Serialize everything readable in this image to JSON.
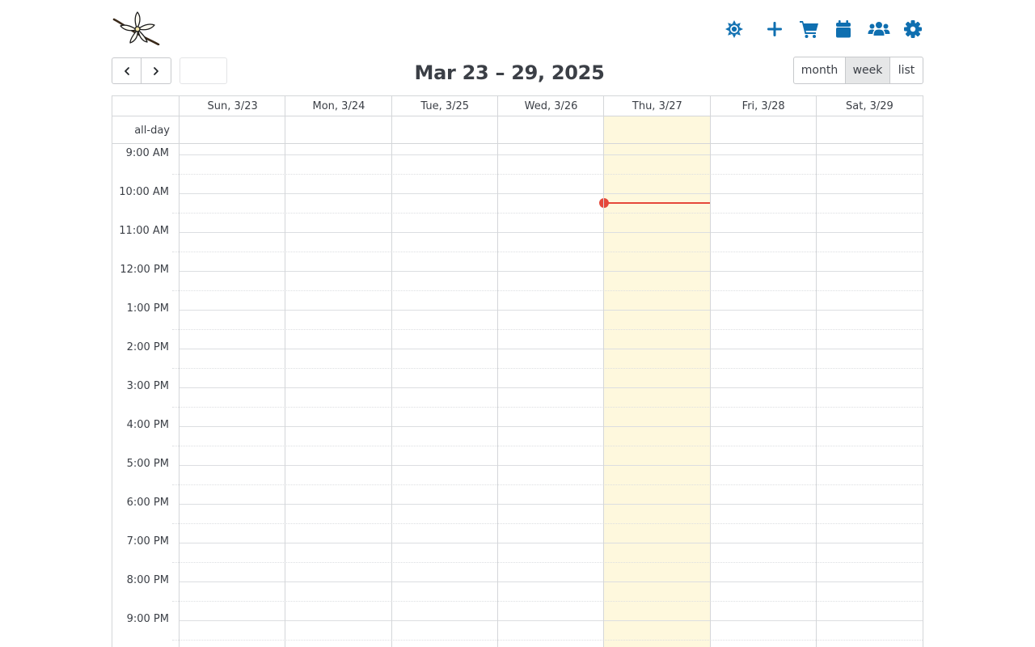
{
  "header": {
    "icons": [
      {
        "name": "light-mode-icon"
      },
      {
        "name": "add-icon"
      },
      {
        "name": "cart-icon"
      },
      {
        "name": "calendar-icon"
      },
      {
        "name": "users-icon"
      },
      {
        "name": "settings-icon"
      }
    ],
    "accent_color": "#0f6fb0"
  },
  "toolbar": {
    "title": "Mar 23 – 29, 2025",
    "today_label": "",
    "views": [
      {
        "label": "month",
        "active": false
      },
      {
        "label": "week",
        "active": true
      },
      {
        "label": "list",
        "active": false
      }
    ]
  },
  "calendar": {
    "day_headers": [
      "Sun, 3/23",
      "Mon, 3/24",
      "Tue, 3/25",
      "Wed, 3/26",
      "Thu, 3/27",
      "Fri, 3/28",
      "Sat, 3/29"
    ],
    "allday_label": "all-day",
    "time_labels": [
      "9:00 AM",
      "10:00 AM",
      "11:00 AM",
      "12:00 PM",
      "1:00 PM",
      "2:00 PM",
      "3:00 PM",
      "4:00 PM",
      "5:00 PM",
      "6:00 PM",
      "7:00 PM",
      "8:00 PM",
      "9:00 PM"
    ],
    "today_color": "#fef8dd",
    "now_indicator_color": "#e5483a"
  }
}
